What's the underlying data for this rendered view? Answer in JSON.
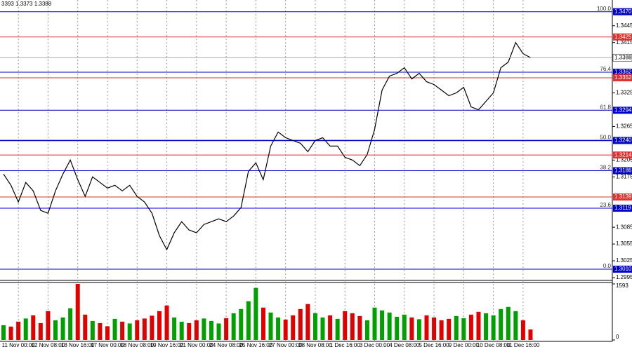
{
  "chart_data": {
    "type": "line",
    "header": "3393 1.3373 1.3388",
    "categories": [
      null,
      null,
      "11 Nov 00:00",
      null,
      null,
      null,
      "12 Nov 08:00",
      null,
      null,
      null,
      "13 Nov 16:00",
      null,
      null,
      null,
      "17 Nov 00:00",
      null,
      null,
      null,
      "18 Nov 08:00",
      null,
      null,
      null,
      "19 Nov 16:00",
      null,
      null,
      null,
      "21 Nov 00:00",
      null,
      null,
      null,
      "24 Nov 08:00",
      null,
      null,
      null,
      "25 Nov 16:00",
      null,
      null,
      null,
      "27 Nov 00:00",
      null,
      null,
      null,
      "28 Nov 08:00",
      null,
      null,
      null,
      "1 Dec 16:00",
      null,
      null,
      null,
      "3 Dec 00:00",
      null,
      null,
      null,
      "4 Dec 08:00",
      null,
      null,
      null,
      "5 Dec 16:00",
      null,
      null,
      null,
      "9 Dec 00:00",
      null,
      null,
      null,
      "10 Dec 08:00",
      null,
      null,
      null,
      "11 Dec 16:00",
      null
    ],
    "series": [
      {
        "color": "#000000",
        "values": [
          1.318,
          1.316,
          1.313,
          1.3165,
          1.315,
          1.3115,
          1.311,
          1.315,
          1.318,
          1.3205,
          1.317,
          1.314,
          1.3175,
          1.3165,
          1.3155,
          1.316,
          1.315,
          1.316,
          1.314,
          1.313,
          1.311,
          1.307,
          1.3045,
          1.3075,
          1.3095,
          1.308,
          1.3075,
          1.309,
          1.3095,
          1.31,
          1.3095,
          1.3105,
          1.312,
          1.3185,
          1.32,
          1.317,
          1.323,
          1.3255,
          1.3245,
          1.324,
          1.3235,
          1.322,
          1.324,
          1.3245,
          1.323,
          1.323,
          1.321,
          1.3205,
          1.3195,
          1.3215,
          1.326,
          1.333,
          1.3355,
          1.336,
          1.337,
          1.335,
          1.336,
          1.3345,
          1.334,
          1.333,
          1.332,
          1.3325,
          1.3335,
          1.33,
          1.3295,
          1.331,
          1.3325,
          1.337,
          1.338,
          1.3415,
          1.3395,
          1.3388
        ]
      }
    ],
    "ylim": [
      1.299,
      1.3491
    ],
    "yticks": [
      {
        "value": 1.3445,
        "label": "1.3445"
      },
      {
        "value": 1.3415,
        "label": "1.3415"
      },
      {
        "value": 1.3325,
        "label": "1.3325"
      },
      {
        "value": 1.3265,
        "label": "1.3265"
      },
      {
        "value": 1.3205,
        "label": "1.3205"
      },
      {
        "value": 1.3175,
        "label": "1.3175"
      },
      {
        "value": 1.3085,
        "label": "1.3085"
      },
      {
        "value": 1.3055,
        "label": "1.3055"
      },
      {
        "value": 1.3025,
        "label": "1.3025"
      },
      {
        "value": 1.2995,
        "label": "1.2995"
      }
    ],
    "grid": true,
    "levels": [
      {
        "value": 1.347,
        "label": "1.3470",
        "fib": "100.0",
        "color": "#0000cc"
      },
      {
        "value": 1.3425,
        "label": "1.3425",
        "color": "#e03030"
      },
      {
        "value": 1.3362,
        "label": "1.3362",
        "fib": "76.4",
        "color": "#0000cc"
      },
      {
        "value": 1.3352,
        "label": "1.3352",
        "color": "#e03030"
      },
      {
        "value": 1.3294,
        "label": "1.3294",
        "fib": "61.8",
        "color": "#0000cc"
      },
      {
        "value": 1.324,
        "label": "1.3240",
        "fib": "50.0",
        "color": "#0000cc"
      },
      {
        "value": 1.3214,
        "label": "1.3214",
        "color": "#e03030"
      },
      {
        "value": 1.3186,
        "label": "1.3186",
        "fib": "38.2",
        "color": "#0000cc"
      },
      {
        "value": 1.3139,
        "label": "1.3139",
        "color": "#e03030"
      },
      {
        "value": 1.3119,
        "label": "1.3119",
        "fib": "23.6",
        "color": "#0000cc"
      },
      {
        "value": 1.301,
        "label": "1.3010",
        "fib": "0.0",
        "color": "#0000cc"
      }
    ],
    "last_price": {
      "value": 1.3388,
      "label": "1.3388"
    },
    "up_color": "#00a000",
    "down_color": "#e00000",
    "volume": {
      "values": [
        420,
        380,
        520,
        610,
        700,
        480,
        820,
        560,
        640,
        900,
        1593,
        720,
        540,
        480,
        390,
        600,
        520,
        470,
        560,
        610,
        690,
        820,
        980,
        640,
        520,
        480,
        560,
        610,
        540,
        470,
        620,
        760,
        880,
        1100,
        1480,
        920,
        780,
        640,
        580,
        700,
        880,
        1020,
        760,
        640,
        700,
        600,
        820,
        760,
        680,
        560,
        920,
        840,
        780,
        660,
        720,
        640,
        590,
        700,
        640,
        560,
        600,
        680,
        620,
        720,
        800,
        760,
        700,
        880,
        940,
        820,
        560,
        300
      ],
      "ylim": [
        0,
        1593
      ],
      "yticks": [
        0,
        1593
      ]
    }
  }
}
